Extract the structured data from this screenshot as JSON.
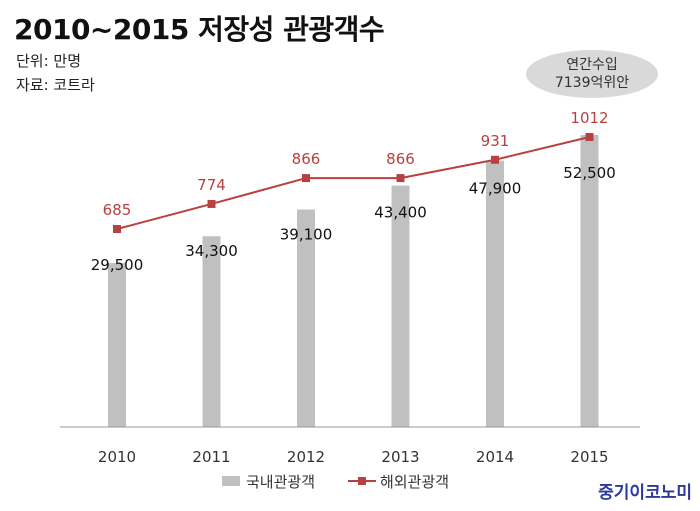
{
  "title": "2010~2015 저장성 관광객수",
  "unit_label": "단위: 만명",
  "source_label": "자료: 코트라",
  "callout": {
    "line1": "연간수입",
    "line2": "7139억위안"
  },
  "brand": "중기이코노미",
  "colors": {
    "bar": "#c0c0c0",
    "line": "#b84040",
    "line_label": "#b84040",
    "bar_label": "#111111"
  },
  "chart_data": {
    "type": "bar",
    "categories": [
      "2010",
      "2011",
      "2012",
      "2013",
      "2014",
      "2015"
    ],
    "series": [
      {
        "name": "국내관광객",
        "type": "bar",
        "values": [
          29500,
          34300,
          39100,
          43400,
          47900,
          52500
        ],
        "labels": [
          "29,500",
          "34,300",
          "39,100",
          "43,400",
          "47,900",
          "52,500"
        ]
      },
      {
        "name": "해외관광객",
        "type": "line",
        "values": [
          685,
          774,
          866,
          866,
          931,
          1012
        ],
        "labels": [
          "685",
          "774",
          "866",
          "866",
          "931",
          "1012"
        ]
      }
    ],
    "legend": "bottom",
    "grid": false
  }
}
